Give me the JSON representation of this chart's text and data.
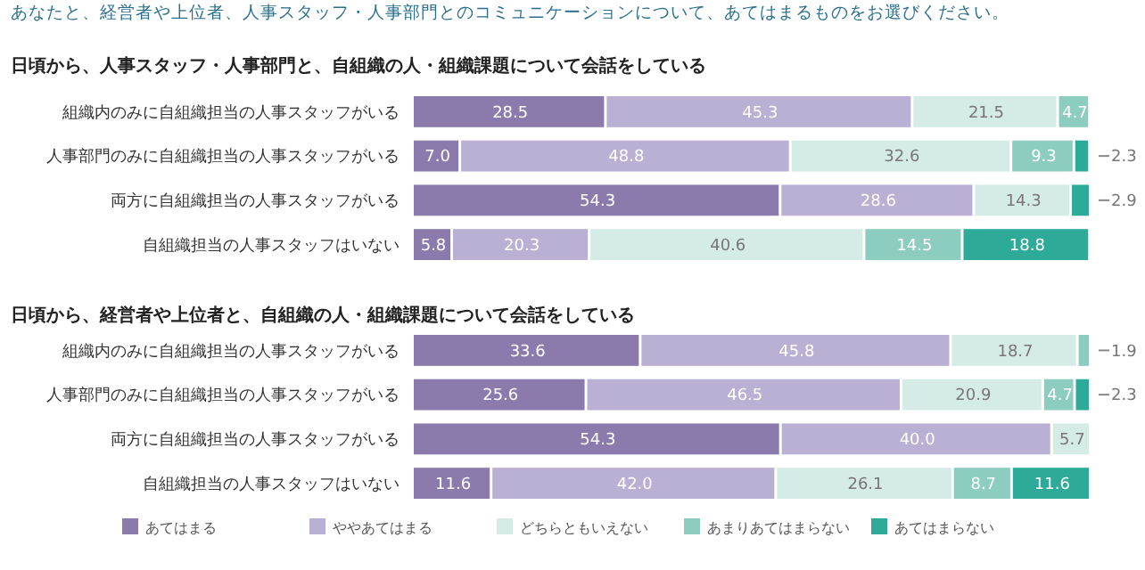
{
  "chart_data": [
    {
      "type": "bar",
      "orientation": "horizontal",
      "stacked": true,
      "title": "あなたと、経営者や上位者、人事スタッフ・人事部門とのコミュニケーションについて、あてはまるものをお選びください。",
      "subtitle": "日頃から、人事スタッフ・人事部門と、自組織の人・組織課題について会話をしている",
      "categories": [
        "組織内のみに自組織担当の人事スタッフがいる",
        "人事部門のみに自組織担当の人事スタッフがいる",
        "両方に自組織担当の人事スタッフがいる",
        "自組織担当の人事スタッフはいない"
      ],
      "tick_labels": "y",
      "legend": false,
      "series": [
        {
          "color": "#8b7bad",
          "values": [
            28.5,
            7.0,
            54.3,
            5.8
          ],
          "value_labels": [
            "28.5",
            "7.0",
            "54.3",
            "5.8"
          ]
        },
        {
          "color": "#b9b0d3",
          "values": [
            45.3,
            48.8,
            28.6,
            20.3
          ],
          "value_labels": [
            "45.3",
            "48.8",
            "28.6",
            "20.3"
          ]
        },
        {
          "color": "#d5ebe6",
          "values": [
            21.5,
            32.6,
            14.3,
            40.6
          ],
          "value_labels": [
            "21.5",
            "32.6",
            "14.3",
            "40.6"
          ]
        },
        {
          "color": "#8ccdbf",
          "values": [
            4.7,
            9.3,
            null,
            14.5
          ],
          "value_labels": [
            "4.7",
            "9.3",
            null,
            "14.5"
          ]
        },
        {
          "color": "#2eab98",
          "values": [
            null,
            2.3,
            2.9,
            18.8
          ],
          "value_labels": [
            null,
            "2.3",
            "2.9",
            "18.8"
          ]
        }
      ]
    },
    {
      "type": "bar",
      "orientation": "horizontal",
      "stacked": true,
      "title": "日頃から、経営者や上位者と、自組織の人・組織課題について会話をしている",
      "categories": [
        "組織内のみに自組織担当の人事スタッフがいる",
        "人事部門のみに自組織担当の人事スタッフがいる",
        "両方に自組織担当の人事スタッフがいる",
        "自組織担当の人事スタッフはいない"
      ],
      "tick_labels": "y",
      "legend": "bottom",
      "series": [
        {
          "name": "あてはまる",
          "color": "#8b7bad",
          "values": [
            33.6,
            25.6,
            54.3,
            11.6
          ],
          "value_labels": [
            "33.6",
            "25.6",
            "54.3",
            "11.6"
          ]
        },
        {
          "name": "ややあてはまる",
          "color": "#b9b0d3",
          "values": [
            45.8,
            46.5,
            40.0,
            42.0
          ],
          "value_labels": [
            "45.8",
            "46.5",
            "40.0",
            "42.0"
          ]
        },
        {
          "name": "どちらともいえない",
          "color": "#d5ebe6",
          "values": [
            18.7,
            20.9,
            5.7,
            26.1
          ],
          "value_labels": [
            "18.7",
            "20.9",
            "5.7",
            "26.1"
          ]
        },
        {
          "name": "あまりあてはまらない",
          "color": "#8ccdbf",
          "values": [
            1.9,
            4.7,
            null,
            8.7
          ],
          "value_labels": [
            "1.9",
            "4.7",
            null,
            "8.7"
          ]
        },
        {
          "name": "あてはまらない",
          "color": "#2eab98",
          "values": [
            null,
            2.3,
            null,
            11.6
          ],
          "value_labels": [
            null,
            "2.3",
            null,
            "11.6"
          ]
        }
      ]
    }
  ]
}
